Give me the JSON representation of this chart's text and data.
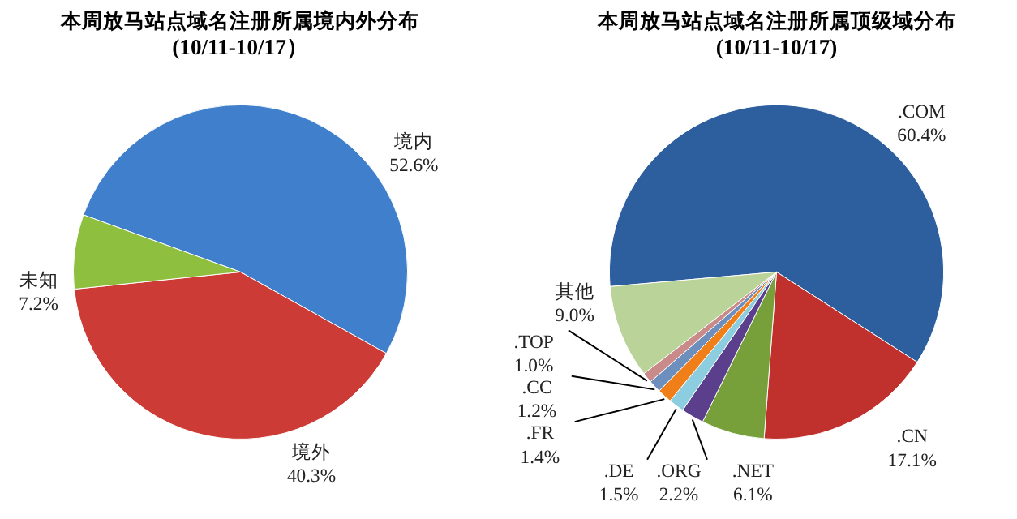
{
  "chart_data": [
    {
      "type": "pie",
      "title": "本周放马站点域名注册所属境内外分布",
      "subtitle": "(10/11-10/17）",
      "categories": [
        "境内",
        "境外",
        "未知"
      ],
      "values": [
        52.6,
        40.3,
        7.2
      ],
      "colors": [
        "#3f7fcc",
        "#cc3b36",
        "#8fbf3e"
      ],
      "value_labels": [
        "52.6%",
        "40.3%",
        "7.2%"
      ]
    },
    {
      "type": "pie",
      "title": "本周放马站点域名注册所属顶级域分布",
      "subtitle": "(10/11-10/17)",
      "categories": [
        ".COM",
        ".CN",
        ".NET",
        ".ORG",
        ".DE",
        ".FR",
        ".CC",
        ".TOP",
        "其他"
      ],
      "values": [
        60.4,
        17.1,
        6.1,
        2.2,
        1.5,
        1.4,
        1.2,
        1.0,
        9.0
      ],
      "colors": [
        "#2d5f9e",
        "#c0302d",
        "#78a03a",
        "#5b3f8c",
        "#8dcde0",
        "#f07f1a",
        "#6d8fbe",
        "#c98a8a",
        "#b9d398"
      ],
      "value_labels": [
        "60.4%",
        "17.1%",
        "6.1%",
        "2.2%",
        "1.5%",
        "1.4%",
        "1.2%",
        "1.0%",
        "9.0%"
      ]
    }
  ]
}
